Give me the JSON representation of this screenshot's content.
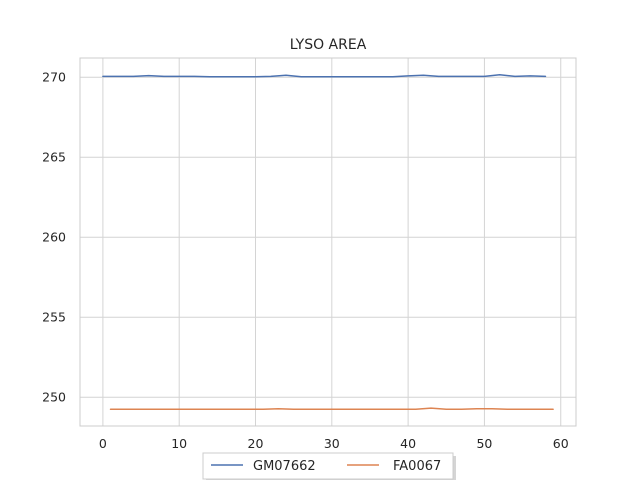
{
  "chart_data": {
    "type": "line",
    "title": "LYSO AREA",
    "xlabel": "",
    "ylabel": "",
    "xlim": [
      -3,
      62
    ],
    "ylim": [
      248.2,
      271.2
    ],
    "xticks": [
      0,
      10,
      20,
      30,
      40,
      50,
      60
    ],
    "yticks": [
      250,
      255,
      260,
      265,
      270
    ],
    "grid": true,
    "legend_position": "bottom-center",
    "series": [
      {
        "name": "GM07662",
        "color": "#4c72b0",
        "x": [
          0,
          2,
          4,
          6,
          8,
          10,
          12,
          14,
          16,
          18,
          20,
          22,
          24,
          26,
          28,
          30,
          32,
          34,
          36,
          38,
          40,
          42,
          44,
          46,
          48,
          50,
          52,
          54,
          56,
          58
        ],
        "values": [
          270.05,
          270.05,
          270.05,
          270.1,
          270.05,
          270.05,
          270.05,
          270.03,
          270.03,
          270.03,
          270.03,
          270.05,
          270.12,
          270.03,
          270.03,
          270.03,
          270.03,
          270.03,
          270.03,
          270.03,
          270.08,
          270.12,
          270.05,
          270.05,
          270.05,
          270.05,
          270.15,
          270.05,
          270.08,
          270.05
        ]
      },
      {
        "name": "FA0067",
        "color": "#dd8452",
        "x": [
          1,
          3,
          5,
          7,
          9,
          11,
          13,
          15,
          17,
          19,
          21,
          23,
          25,
          27,
          29,
          31,
          33,
          35,
          37,
          39,
          41,
          43,
          45,
          47,
          49,
          51,
          53,
          55,
          57,
          59
        ],
        "values": [
          249.25,
          249.25,
          249.25,
          249.25,
          249.25,
          249.25,
          249.25,
          249.25,
          249.25,
          249.25,
          249.25,
          249.28,
          249.25,
          249.25,
          249.25,
          249.25,
          249.25,
          249.25,
          249.25,
          249.25,
          249.25,
          249.32,
          249.25,
          249.25,
          249.28,
          249.28,
          249.25,
          249.25,
          249.25,
          249.25
        ]
      }
    ]
  }
}
